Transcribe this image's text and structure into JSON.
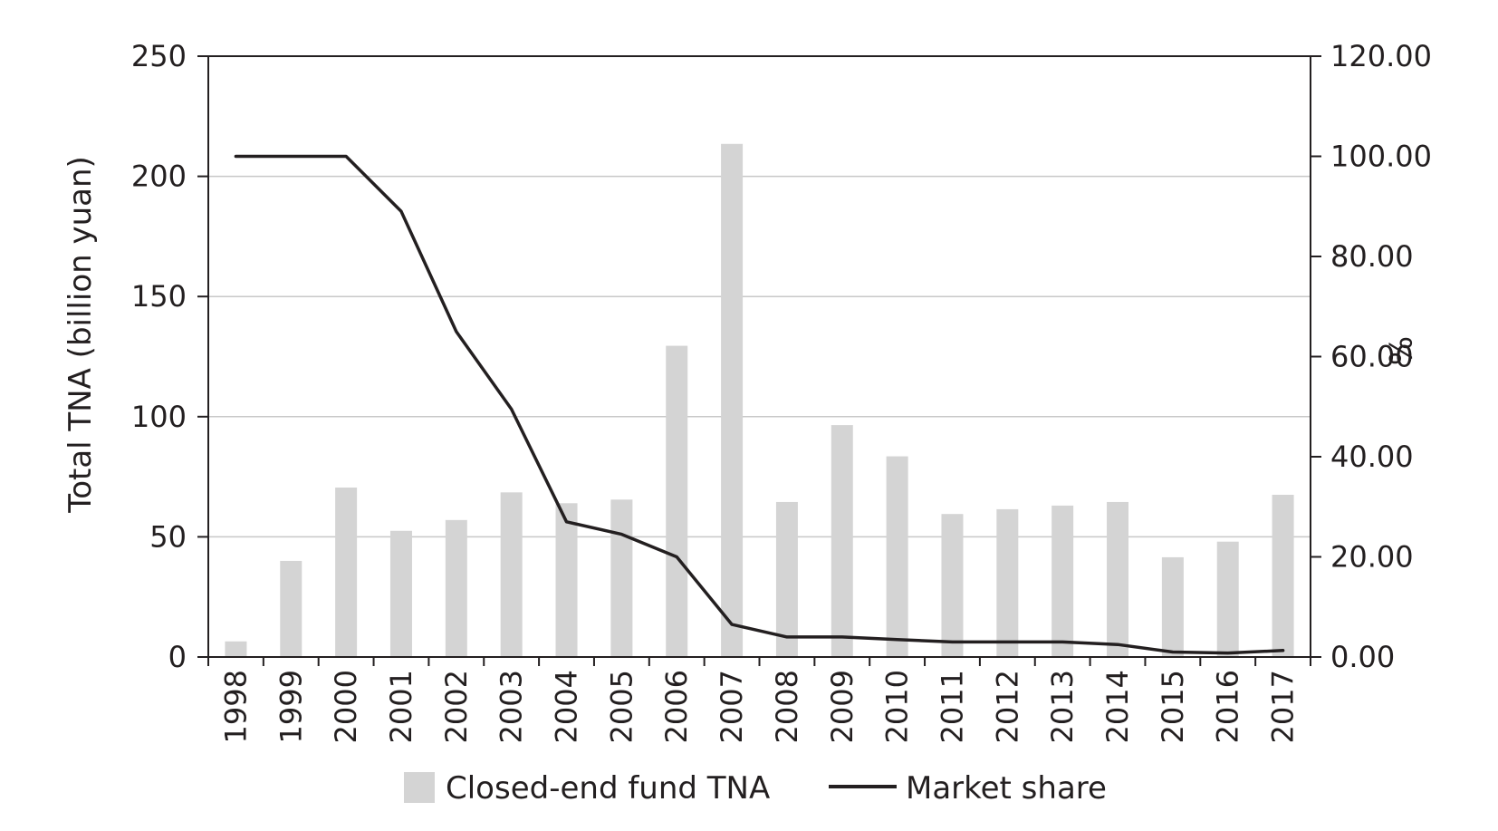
{
  "chart_data": {
    "type": "bar",
    "categories": [
      "1998",
      "1999",
      "2000",
      "2001",
      "2002",
      "2003",
      "2004",
      "2005",
      "2006",
      "2007",
      "2008",
      "2009",
      "2010",
      "2011",
      "2012",
      "2013",
      "2014",
      "2015",
      "2016",
      "2017"
    ],
    "series": [
      {
        "name": "Closed-end fund TNA",
        "type": "bar",
        "axis": "left",
        "values": [
          6.5,
          40,
          70.5,
          52.5,
          57,
          68.5,
          64,
          65.5,
          129.5,
          213.5,
          64.5,
          96.5,
          83.5,
          59.5,
          61.5,
          63,
          64.5,
          41.5,
          48,
          67.5
        ],
        "color": "#d4d4d4"
      },
      {
        "name": "Market share",
        "type": "line",
        "axis": "right",
        "values": [
          100,
          100,
          100,
          89,
          65,
          49.5,
          27,
          24.5,
          20,
          6.5,
          4,
          4,
          3.5,
          3,
          3,
          3,
          2.5,
          1,
          0.8,
          1.3
        ],
        "color": "#231f20"
      }
    ],
    "ylabel": "Total TNA (billion yuan)",
    "y2label": "%",
    "ylim": [
      0,
      250
    ],
    "y2lim": [
      0,
      120
    ],
    "yticks": [
      "0",
      "50",
      "100",
      "150",
      "200",
      "250"
    ],
    "y2ticks": [
      "0.00",
      "20.00",
      "40.00",
      "60.00",
      "80.00",
      "100.00",
      "120.00"
    ],
    "grid": true,
    "legend_position": "bottom"
  }
}
